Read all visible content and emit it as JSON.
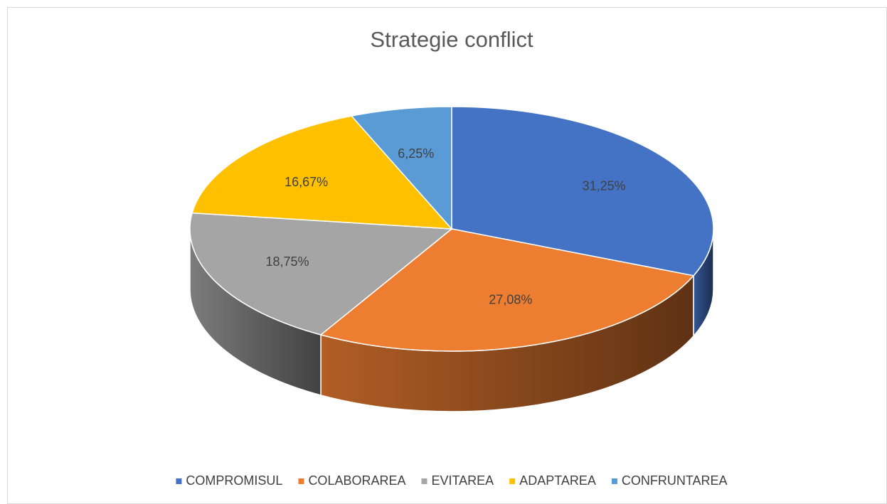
{
  "chart_data": {
    "type": "pie",
    "title": "Strategie conflict",
    "categories": [
      "COMPROMISUL",
      "COLABORAREA",
      "EVITAREA",
      "ADAPTAREA",
      "CONFRUNTAREA"
    ],
    "values": [
      31.25,
      27.08,
      18.75,
      16.67,
      6.25
    ],
    "value_labels": [
      "31,25%",
      "27,08%",
      "18,75%",
      "16,67%",
      "6,25%"
    ],
    "colors": [
      "#4472c4",
      "#ed7d31",
      "#a5a5a5",
      "#ffc000",
      "#5b9bd5"
    ],
    "legend": "bottom"
  }
}
